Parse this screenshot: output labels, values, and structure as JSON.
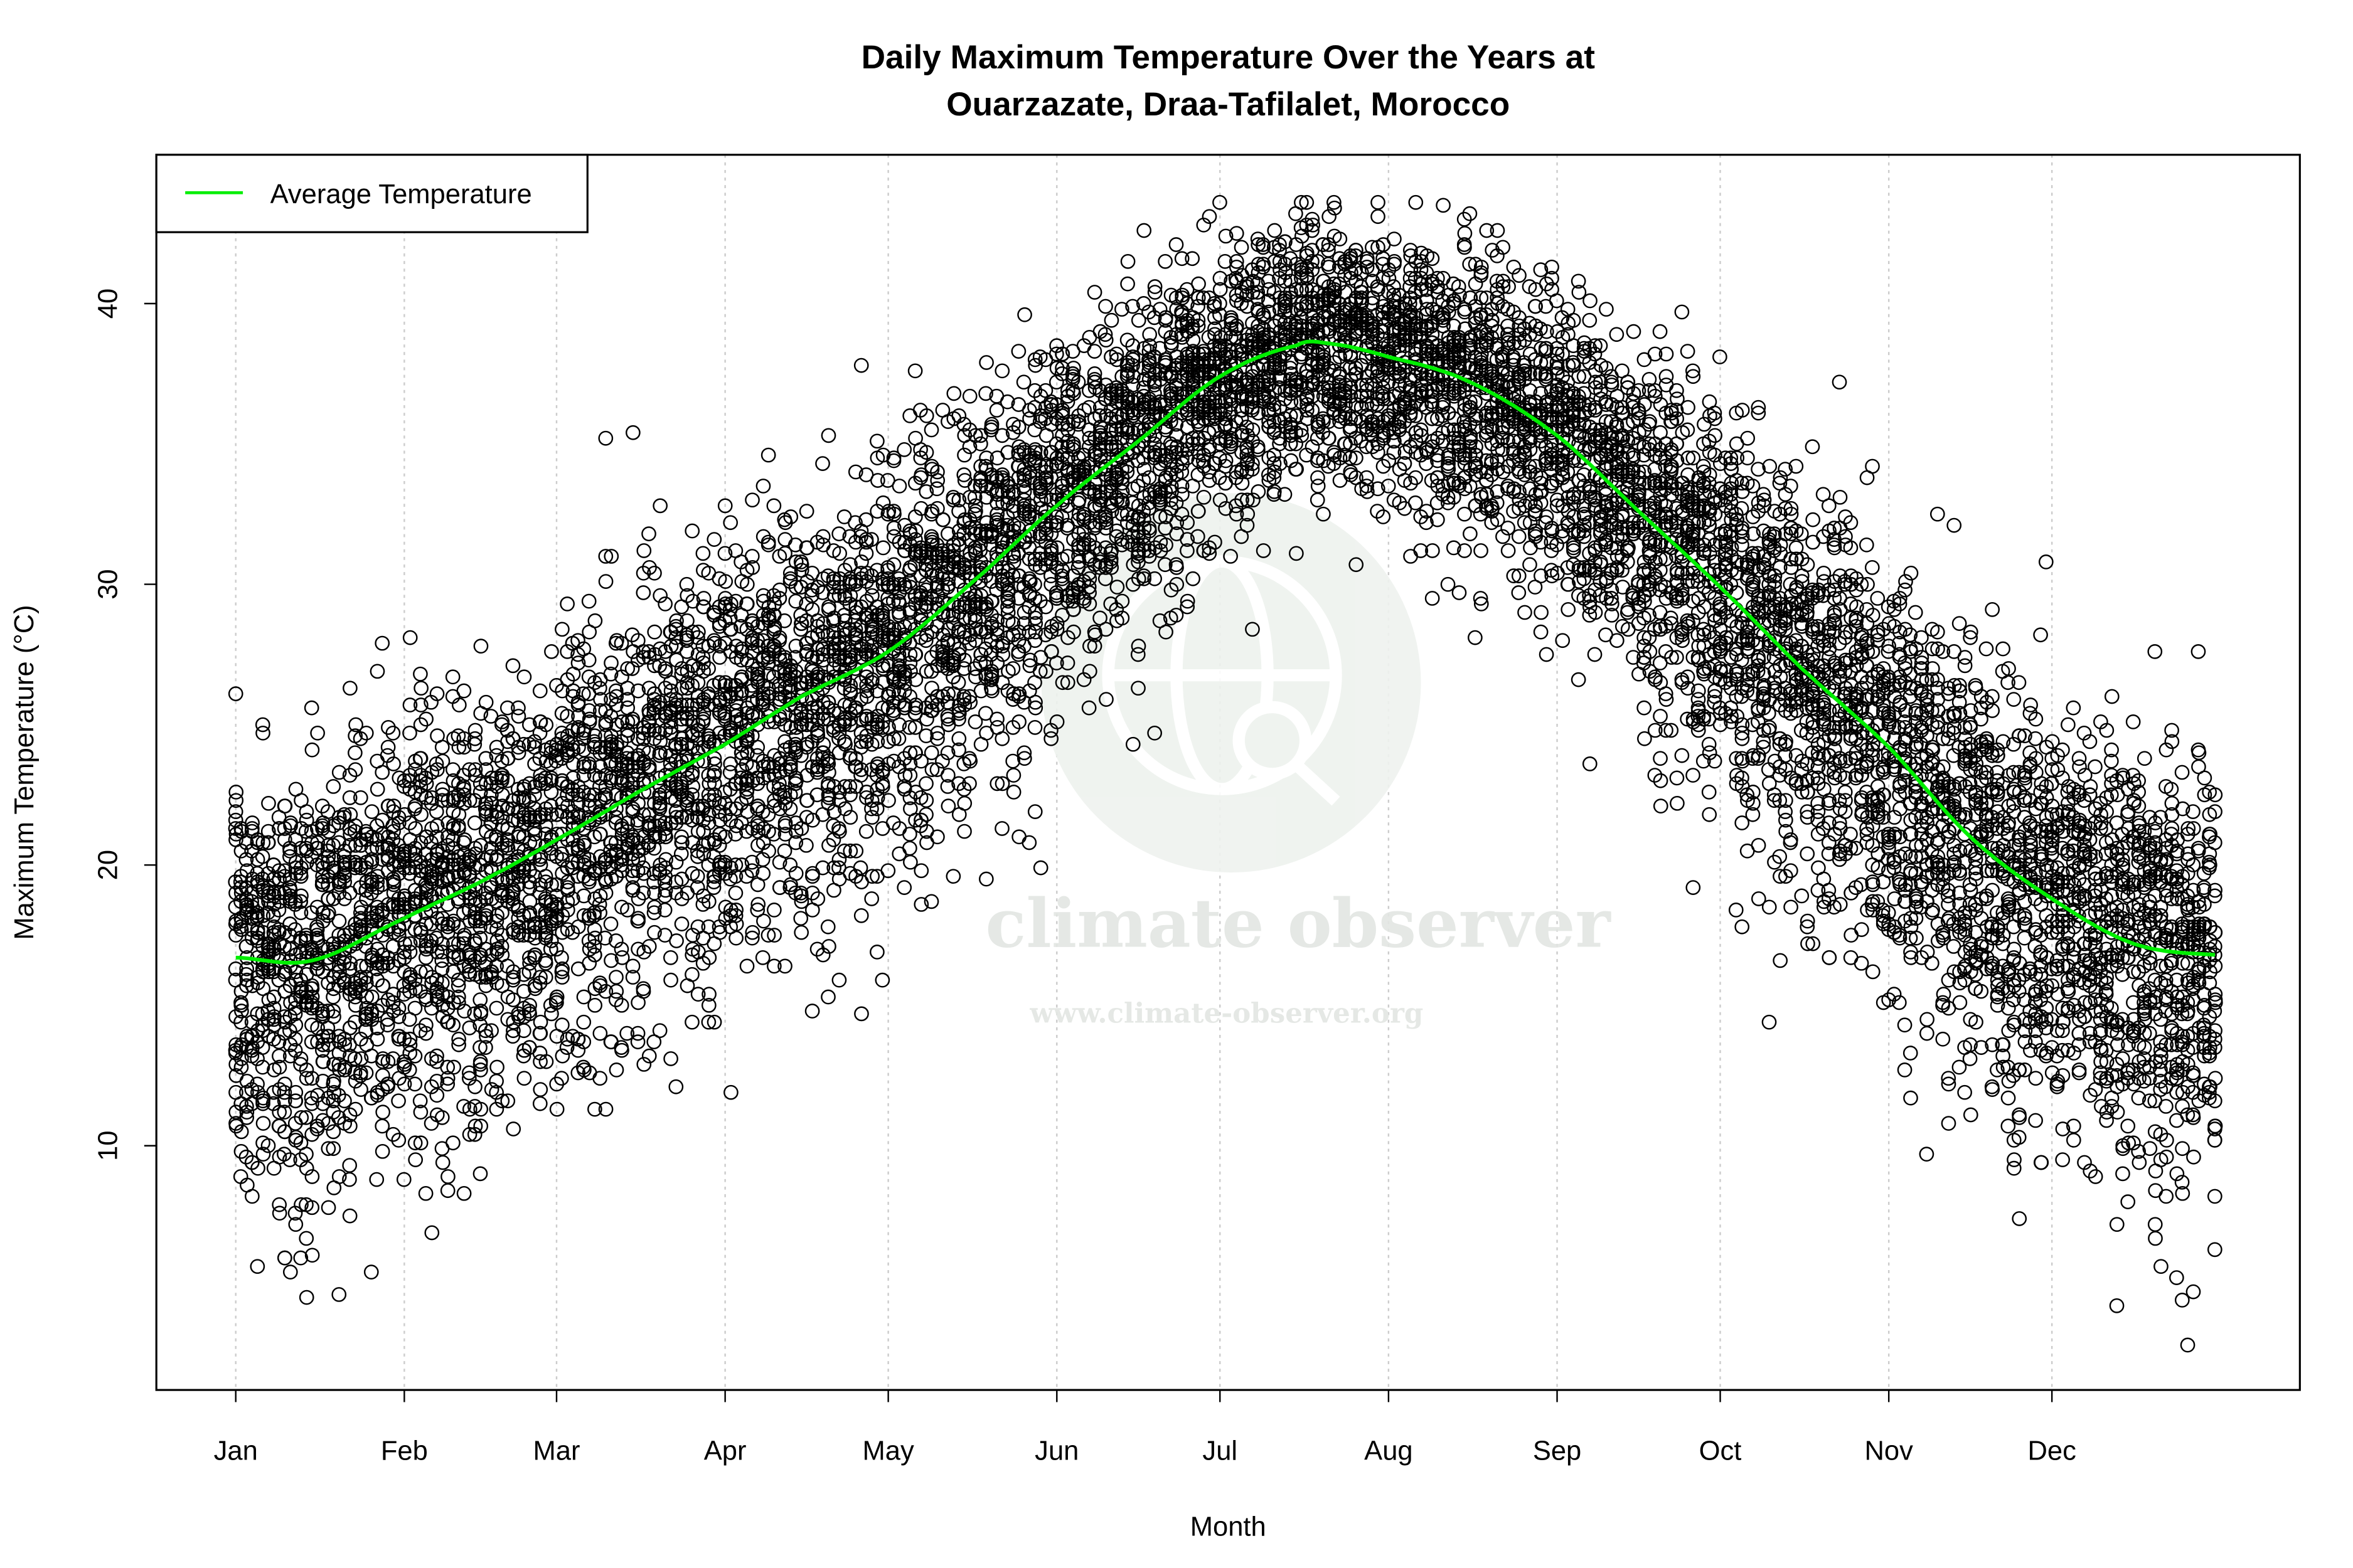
{
  "chart_data": {
    "type": "scatter",
    "title": "Daily Maximum Temperature Over the Years at",
    "subtitle": "Ouarzazate, Draa-Tafilalet, Morocco",
    "xlabel": "Month",
    "ylabel": "Maximum Temperature (°C)",
    "xlim": [
      -13.6,
      380.6
    ],
    "ylim": [
      1.3,
      45.3
    ],
    "x_ticks": [
      {
        "day": 1,
        "label": "Jan"
      },
      {
        "day": 32,
        "label": "Feb"
      },
      {
        "day": 60,
        "label": "Mar"
      },
      {
        "day": 91,
        "label": "Apr"
      },
      {
        "day": 121,
        "label": "May"
      },
      {
        "day": 152,
        "label": "Jun"
      },
      {
        "day": 182,
        "label": "Jul"
      },
      {
        "day": 213,
        "label": "Aug"
      },
      {
        "day": 244,
        "label": "Sep"
      },
      {
        "day": 274,
        "label": "Oct"
      },
      {
        "day": 305,
        "label": "Nov"
      },
      {
        "day": 335,
        "label": "Dec"
      }
    ],
    "y_ticks": [
      10,
      20,
      30,
      40
    ],
    "grid": "vertical dotted at month ticks",
    "legend": {
      "placement": "top-left",
      "entries": [
        {
          "label": "Average Temperature",
          "color": "#00ee00"
        }
      ]
    },
    "scatter_style": {
      "marker": "open-circle",
      "color": "#000000",
      "range_note_min": 2.8,
      "range_note_max": 43.6
    },
    "average_series": {
      "name": "Average Temperature",
      "color": "#00ee00",
      "points": [
        [
          1,
          16.7
        ],
        [
          15,
          16.6
        ],
        [
          32,
          18.1
        ],
        [
          46,
          19.4
        ],
        [
          60,
          20.9
        ],
        [
          75,
          22.6
        ],
        [
          91,
          24.3
        ],
        [
          105,
          26.0
        ],
        [
          121,
          27.6
        ],
        [
          136,
          30.0
        ],
        [
          152,
          32.8
        ],
        [
          167,
          35.1
        ],
        [
          182,
          37.4
        ],
        [
          196,
          38.5
        ],
        [
          201,
          38.6
        ],
        [
          213,
          38.1
        ],
        [
          228,
          37.2
        ],
        [
          244,
          35.3
        ],
        [
          259,
          32.6
        ],
        [
          274,
          29.9
        ],
        [
          289,
          27.0
        ],
        [
          305,
          24.2
        ],
        [
          320,
          21.0
        ],
        [
          335,
          18.8
        ],
        [
          350,
          17.2
        ],
        [
          365,
          16.8
        ]
      ]
    }
  },
  "watermark": {
    "name": "climate observer",
    "url": "www.climate-observer.org"
  }
}
